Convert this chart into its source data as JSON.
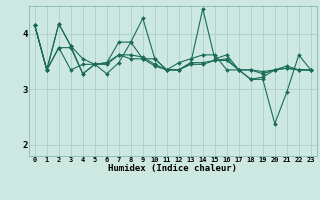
{
  "xlabel": "Humidex (Indice chaleur)",
  "bg_color": "#cce8e0",
  "grid_color": "#aacfc8",
  "line_color": "#1a6b5a",
  "x_ticks": [
    0,
    1,
    2,
    3,
    4,
    5,
    6,
    7,
    8,
    9,
    10,
    11,
    12,
    13,
    14,
    15,
    16,
    17,
    18,
    19,
    20,
    21,
    22,
    23
  ],
  "ylim": [
    1.8,
    4.5
  ],
  "yticks": [
    2,
    3,
    4
  ],
  "line1": [
    4.15,
    3.35,
    4.18,
    3.78,
    3.28,
    3.45,
    3.28,
    3.48,
    3.85,
    4.28,
    3.55,
    3.35,
    3.35,
    3.48,
    4.45,
    3.55,
    3.62,
    3.35,
    3.18,
    3.18,
    2.38,
    2.95,
    3.62,
    3.35
  ],
  "line2": [
    4.15,
    3.35,
    4.18,
    3.78,
    3.55,
    3.45,
    3.48,
    3.85,
    3.85,
    3.55,
    3.55,
    3.35,
    3.48,
    3.55,
    3.62,
    3.62,
    3.35,
    3.35,
    3.18,
    3.22,
    3.35,
    3.42,
    3.35,
    3.35
  ],
  "line3": [
    4.15,
    3.35,
    3.75,
    3.35,
    3.45,
    3.45,
    3.48,
    3.62,
    3.62,
    3.58,
    3.45,
    3.35,
    3.35,
    3.45,
    3.45,
    3.52,
    3.52,
    3.35,
    3.35,
    3.32,
    3.35,
    3.38,
    3.35,
    3.35
  ],
  "line4": [
    4.15,
    3.35,
    3.75,
    3.75,
    3.28,
    3.45,
    3.45,
    3.62,
    3.55,
    3.55,
    3.42,
    3.35,
    3.35,
    3.48,
    3.48,
    3.52,
    3.55,
    3.35,
    3.35,
    3.28,
    3.35,
    3.38,
    3.35,
    3.35
  ]
}
